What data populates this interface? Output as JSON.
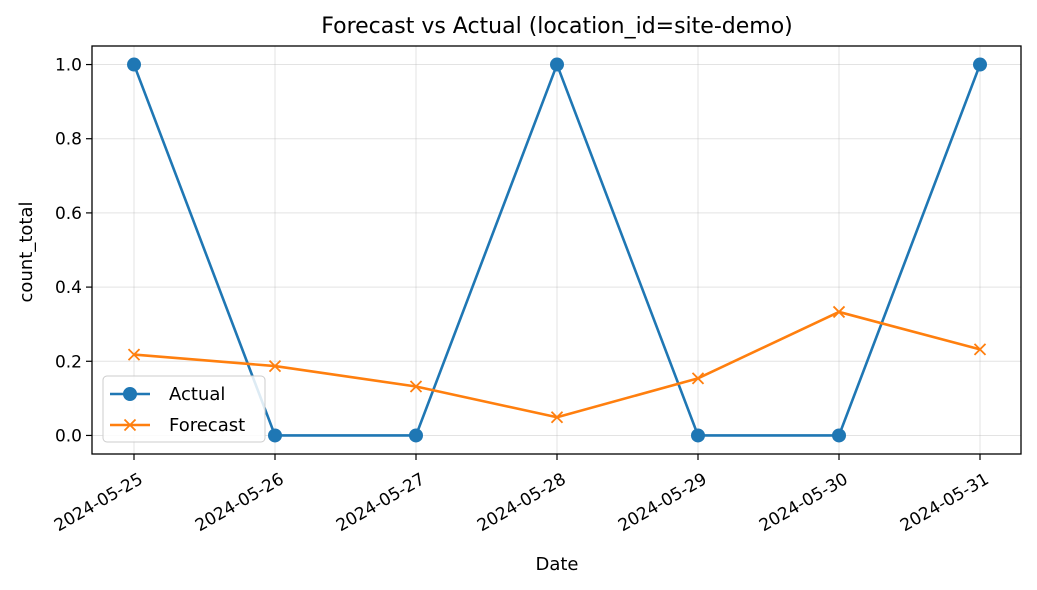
{
  "chart_data": {
    "type": "line",
    "title": "Forecast vs Actual (location_id=site-demo)",
    "xlabel": "Date",
    "ylabel": "count_total",
    "x": [
      "2024-05-25",
      "2024-05-26",
      "2024-05-27",
      "2024-05-28",
      "2024-05-29",
      "2024-05-30",
      "2024-05-31"
    ],
    "ylim": [
      -0.05,
      1.05
    ],
    "yticks": [
      "0.0",
      "0.2",
      "0.4",
      "0.6",
      "0.8",
      "1.0"
    ],
    "grid": true,
    "legend_position": "lower-left",
    "series": [
      {
        "name": "Actual",
        "color": "#1f77b4",
        "marker": "circle",
        "values": [
          1.0,
          0.0,
          0.0,
          1.0,
          0.0,
          0.0,
          1.0
        ]
      },
      {
        "name": "Forecast",
        "color": "#ff7f0e",
        "marker": "x",
        "values": [
          0.218,
          0.187,
          0.132,
          0.049,
          0.154,
          0.333,
          0.232
        ]
      }
    ]
  }
}
